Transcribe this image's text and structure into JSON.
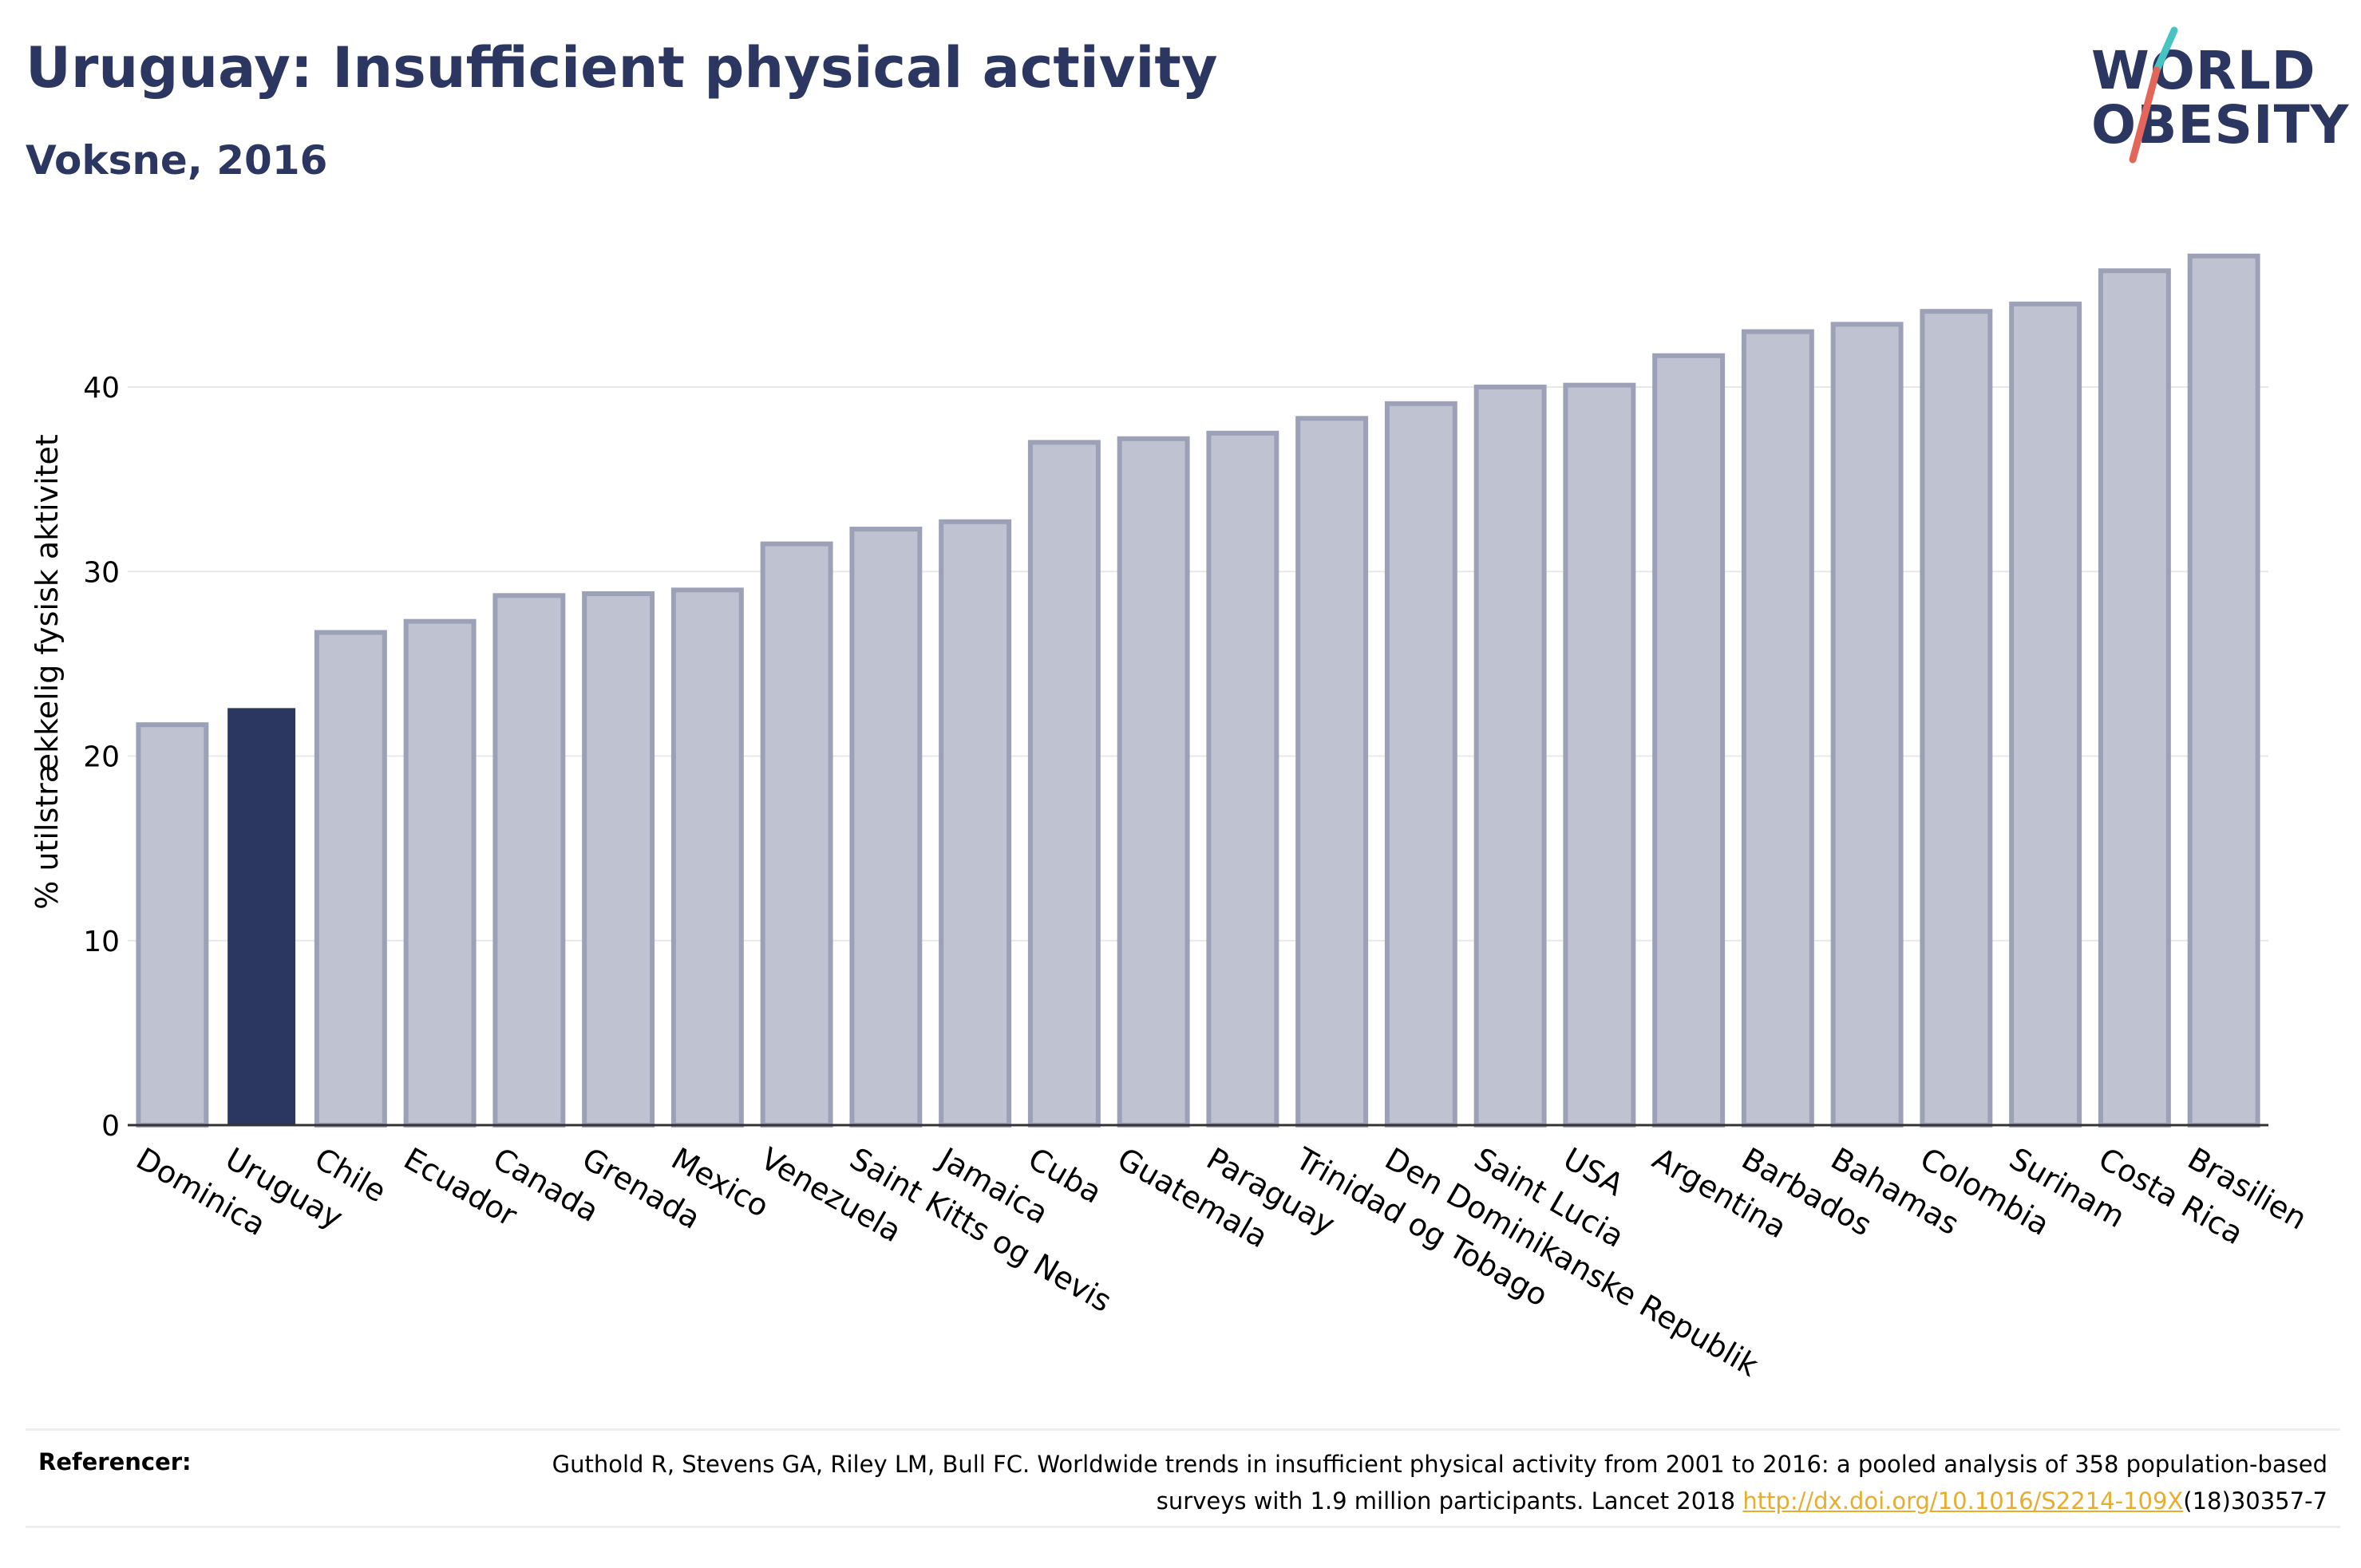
{
  "header": {
    "title": "Uruguay: Insufficient physical activity",
    "subtitle": "Voksne, 2016"
  },
  "logo": {
    "line1": "WORLD",
    "line2": "OBESITY",
    "accent_colors": [
      "#47c3c1",
      "#e2675a"
    ]
  },
  "chart_data": {
    "type": "bar",
    "title": "Uruguay: Insufficient physical activity",
    "subtitle": "Voksne, 2016",
    "ylabel": "% utilstrækkelig fysisk aktivitet",
    "xlabel": "",
    "ylim": [
      0,
      48
    ],
    "yticks": [
      0,
      10,
      20,
      30,
      40
    ],
    "grid": true,
    "highlight": "Uruguay",
    "colors": {
      "bar": "#bfc2d0",
      "bar_outline": "#9da1b8",
      "highlight": "#2c3761",
      "grid": "#e8e8e8",
      "axis": "#333333"
    },
    "categories": [
      "Dominica",
      "Uruguay",
      "Chile",
      "Ecuador",
      "Canada",
      "Grenada",
      "Mexico",
      "Venezuela",
      "Saint Kitts og Nevis",
      "Jamaica",
      "Cuba",
      "Guatemala",
      "Paraguay",
      "Trinidad og Tobago",
      "Den Dominikanske Republik",
      "Saint Lucia",
      "USA",
      "Argentina",
      "Barbados",
      "Bahamas",
      "Colombia",
      "Surinam",
      "Costa Rica",
      "Brasilien"
    ],
    "values": [
      21.7,
      22.6,
      26.7,
      27.3,
      28.7,
      28.8,
      29.0,
      31.5,
      32.3,
      32.7,
      37.0,
      37.2,
      37.5,
      38.3,
      39.1,
      40.0,
      40.1,
      41.7,
      43.0,
      43.4,
      44.1,
      44.5,
      46.3,
      47.1
    ]
  },
  "references": {
    "label": "Referencer:",
    "text_before_link": "Guthold R, Stevens GA, Riley LM, Bull FC. Worldwide trends in insufficient physical activity from 2001 to 2016: a pooled analysis of 358 population-based surveys with 1.9 million participants. Lancet 2018 ",
    "link": "http://dx.doi.org/10.1016/S2214-109X",
    "text_after_link": "(18)30357-7"
  }
}
